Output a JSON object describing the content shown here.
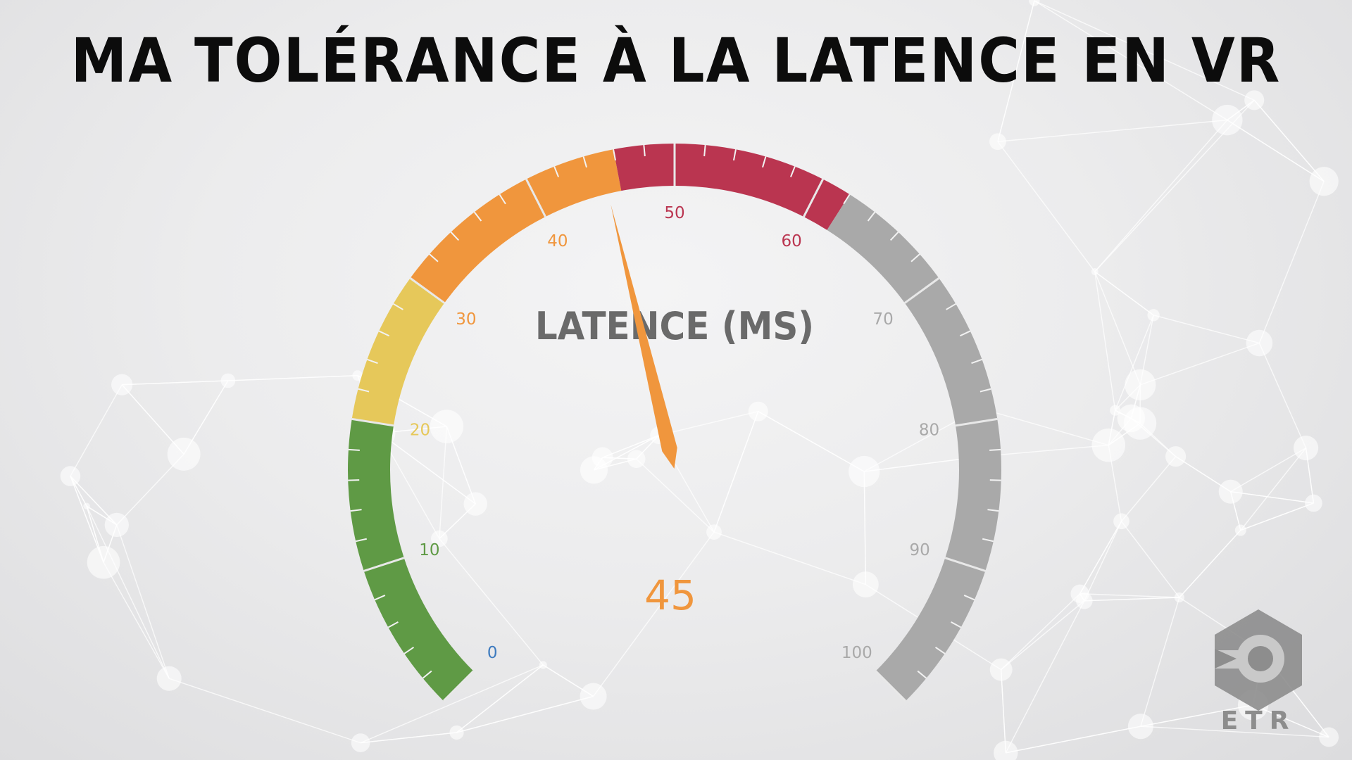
{
  "title": "MA TOLÉRANCE À LA LATENCE EN VR",
  "logo_text": "ETR",
  "chart_data": {
    "type": "gauge",
    "title": "MA TOLÉRANCE À LA LATENCE EN VR",
    "label": "LATENCE (MS)",
    "value": 45,
    "value_display": "45",
    "range": [
      0,
      100
    ],
    "major_ticks": [
      0,
      10,
      20,
      30,
      40,
      50,
      60,
      70,
      80,
      90,
      100
    ],
    "minor_ticks_per_major": 5,
    "bands": [
      {
        "from": 0,
        "to": 20,
        "color": "#5f9a45"
      },
      {
        "from": 20,
        "to": 30,
        "color": "#e6c85a"
      },
      {
        "from": 30,
        "to": 46,
        "color": "#f0963d"
      },
      {
        "from": 46,
        "to": 62,
        "color": "#ba3550"
      },
      {
        "from": 62,
        "to": 100,
        "color": "#a9a9a9"
      }
    ],
    "needle_color": "#f0963d",
    "value_color": "#f0963d",
    "label_color": "#6a6a6a"
  }
}
